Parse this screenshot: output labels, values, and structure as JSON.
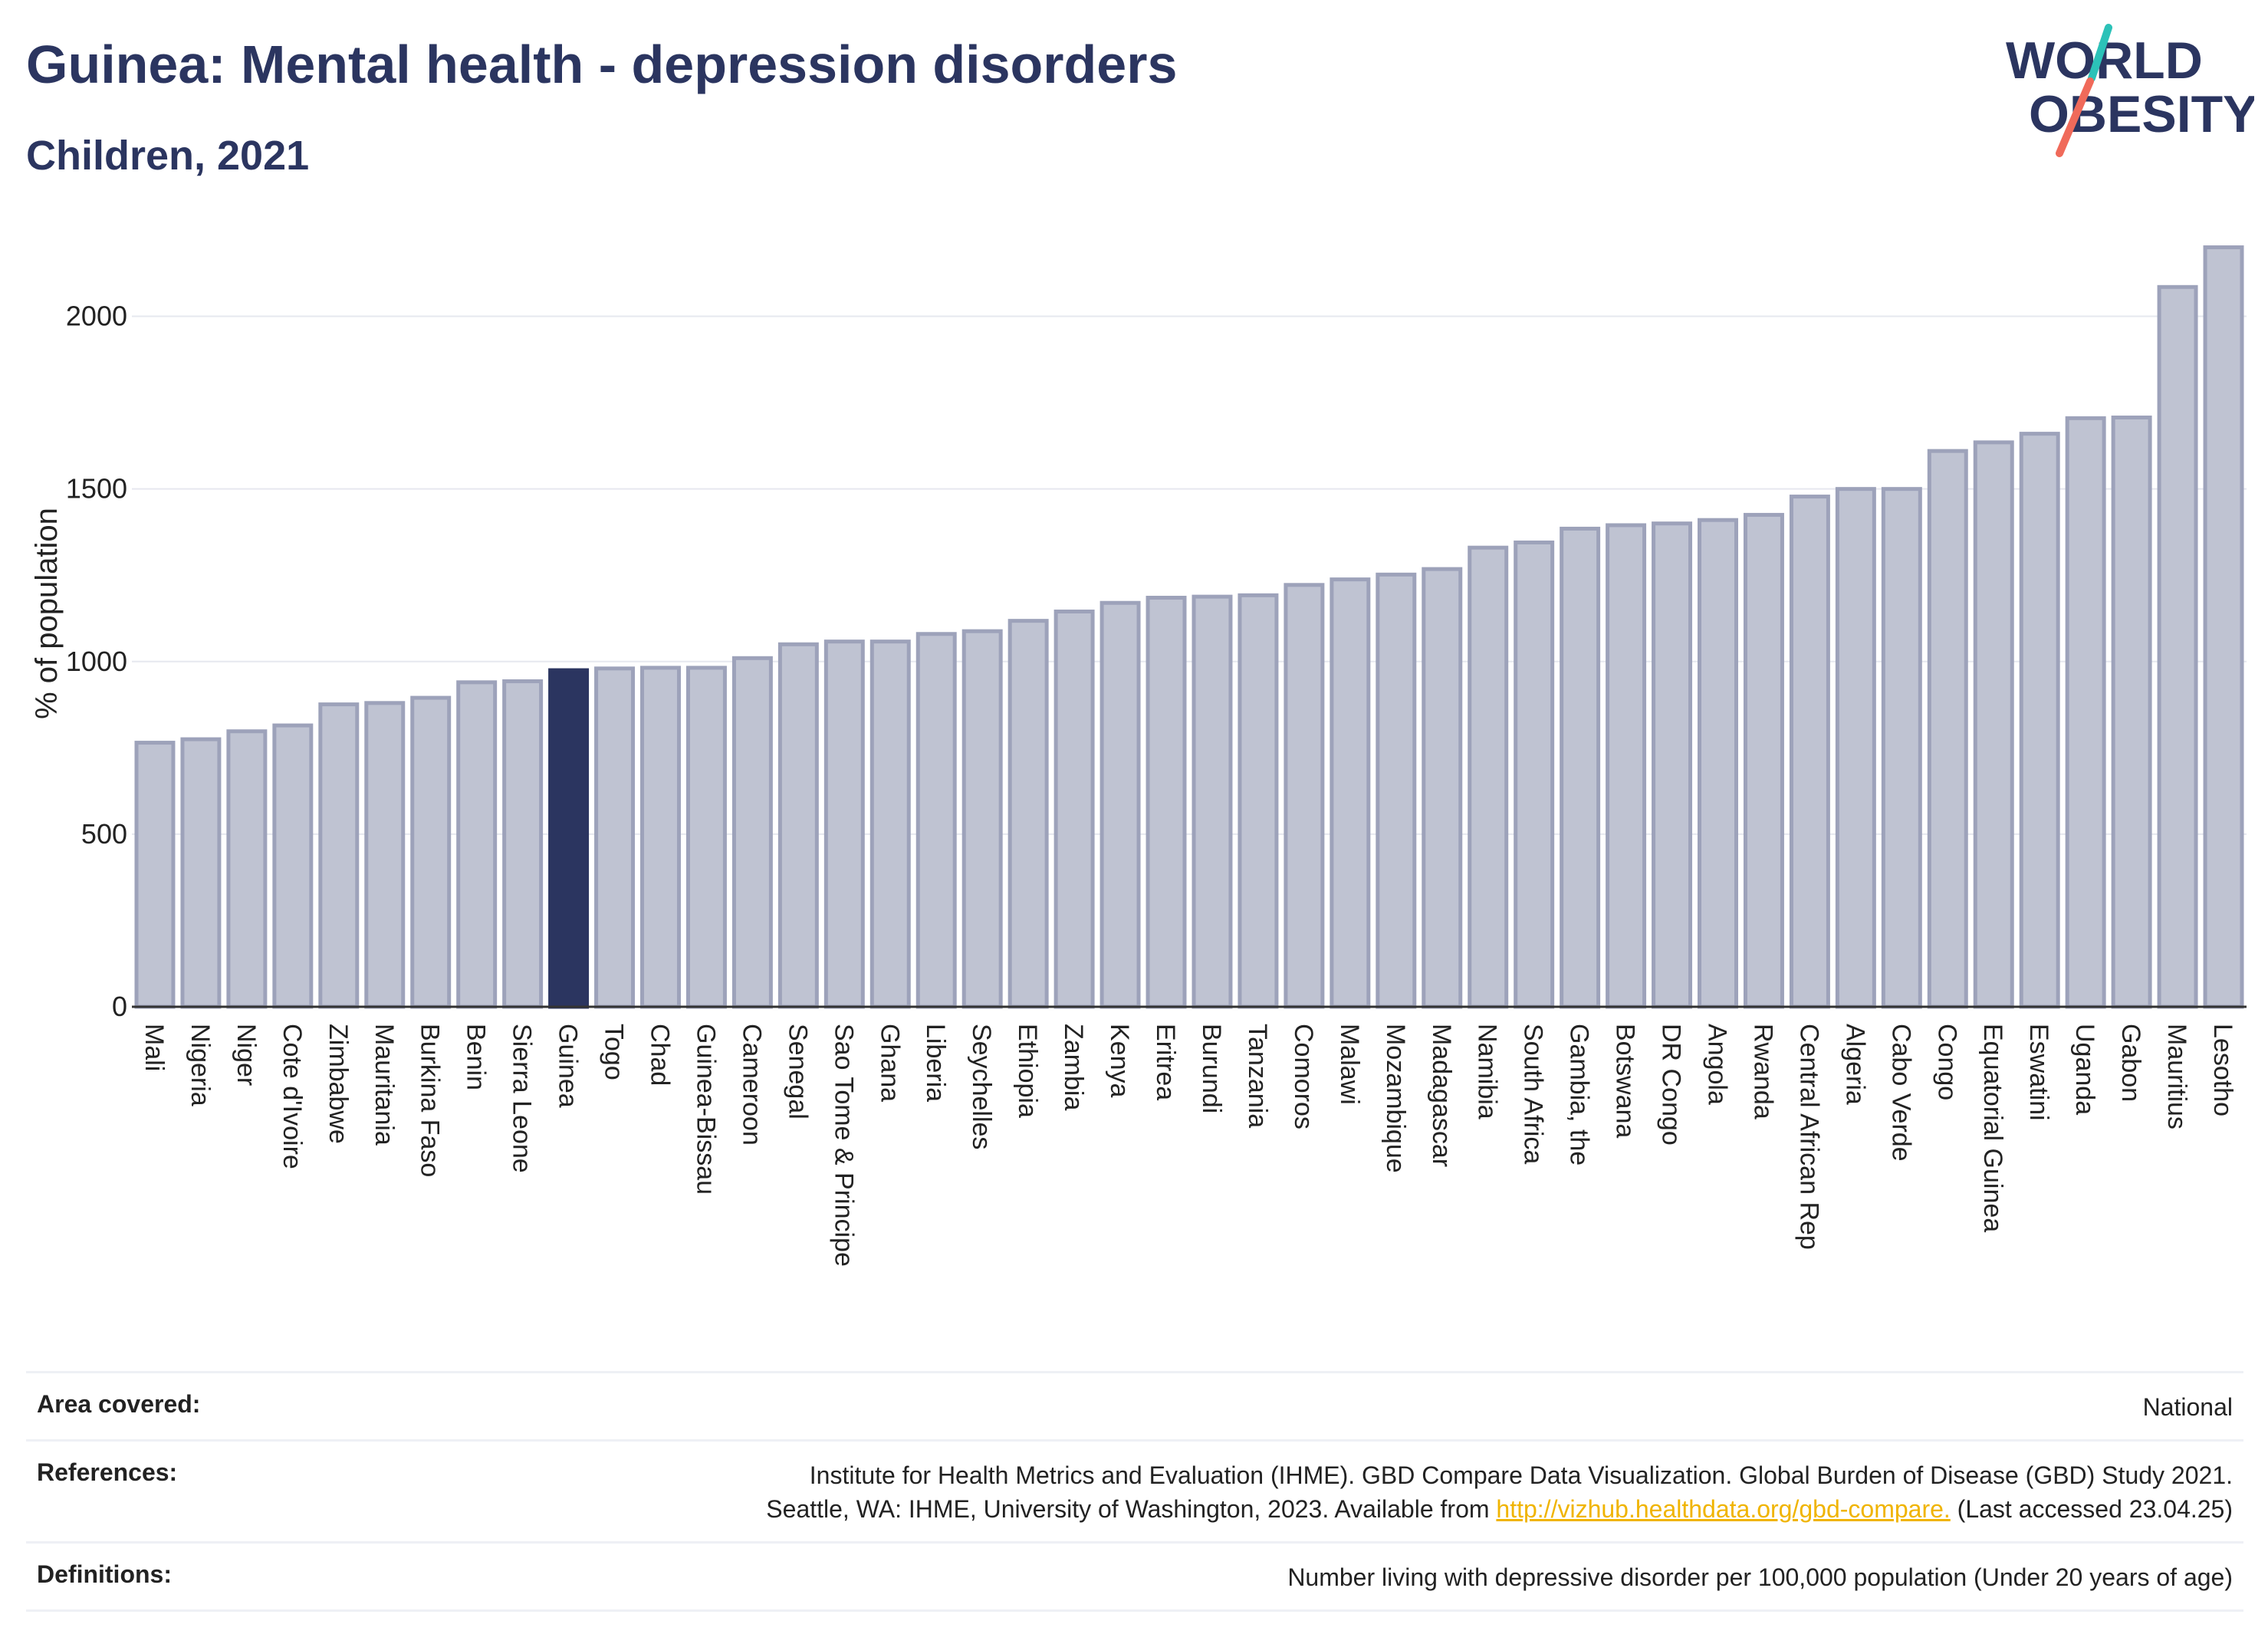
{
  "header": {
    "title": "Guinea: Mental health - depression disorders",
    "subtitle": "Children, 2021"
  },
  "logo": {
    "line1": "WORLD",
    "line2": "OBESITY"
  },
  "chart_data": {
    "type": "bar",
    "title": "Guinea: Mental health - depression disorders",
    "subtitle": "Children, 2021",
    "ylabel": "% of population",
    "xlabel": "",
    "ylim": [
      0,
      2250
    ],
    "yticks": [
      0,
      500,
      1000,
      1500,
      2000
    ],
    "grid": true,
    "highlight": "Guinea",
    "colors": {
      "bar": "#bfc3d2",
      "bar_edge": "#9da2ba",
      "highlight": "#2b3560"
    },
    "categories": [
      "Mali",
      "Nigeria",
      "Niger",
      "Cote d'Ivoire",
      "Zimbabwe",
      "Mauritania",
      "Burkina Faso",
      "Benin",
      "Sierra Leone",
      "Guinea",
      "Togo",
      "Chad",
      "Guinea-Bissau",
      "Cameroon",
      "Senegal",
      "Sao Tome & Principe",
      "Ghana",
      "Liberia",
      "Seychelles",
      "Ethiopia",
      "Zambia",
      "Kenya",
      "Eritrea",
      "Burundi",
      "Tanzania",
      "Comoros",
      "Malawi",
      "Mozambique",
      "Madagascar",
      "Namibia",
      "South Africa",
      "Gambia, the",
      "Botswana",
      "DR Congo",
      "Angola",
      "Rwanda",
      "Central African Rep",
      "Algeria",
      "Cabo Verde",
      "Congo",
      "Equatorial Guinea",
      "Eswatini",
      "Uganda",
      "Gabon",
      "Mauritius",
      "Lesotho"
    ],
    "values": [
      765,
      775,
      798,
      815,
      876,
      880,
      895,
      940,
      943,
      975,
      980,
      982,
      982,
      1010,
      1050,
      1058,
      1058,
      1080,
      1088,
      1118,
      1145,
      1170,
      1185,
      1188,
      1192,
      1222,
      1238,
      1252,
      1268,
      1330,
      1345,
      1385,
      1395,
      1400,
      1410,
      1425,
      1478,
      1500,
      1500,
      1610,
      1635,
      1660,
      1705,
      1707,
      2085,
      2200
    ]
  },
  "meta": {
    "area_label": "Area covered:",
    "area_value": "National",
    "references_label": "References:",
    "references_line1": "Institute for Health Metrics and Evaluation (IHME). GBD Compare Data Visualization. Global Burden of Disease (GBD) Study 2021.",
    "references_line2_pre": "Seattle, WA: IHME, University of Washington, 2023. Available from ",
    "references_link": "http://vizhub.healthdata.org/gbd-compare.",
    "references_line2_post": " (Last accessed 23.04.25)",
    "definitions_label": "Definitions:",
    "definitions_value": "Number living with depressive disorder per 100,000 population (Under 20 years of age)"
  }
}
